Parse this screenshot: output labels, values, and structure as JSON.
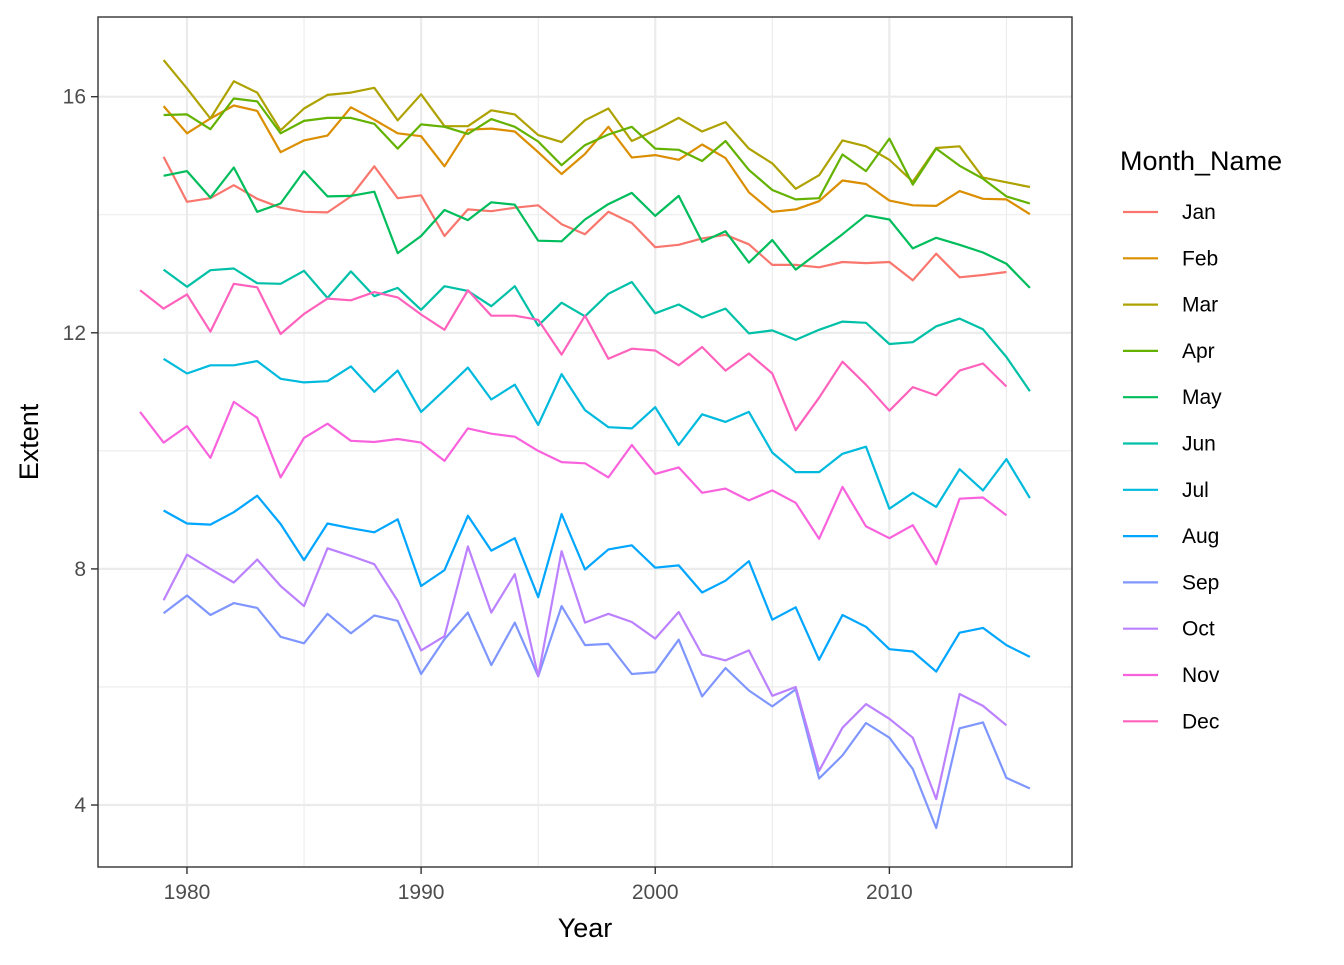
{
  "chart_data": {
    "type": "line",
    "xlabel": "Year",
    "ylabel": "Extent",
    "xlim": [
      1976.2,
      2017.8
    ],
    "ylim": [
      2.95,
      17.35
    ],
    "x_ticks": [
      1980,
      1990,
      2000,
      2010
    ],
    "y_ticks": [
      4,
      8,
      12,
      16
    ],
    "grid": true,
    "legend_title": "Month_Name",
    "legend_position": "right",
    "series": [
      {
        "name": "Jan",
        "color": "#F8766D",
        "x": [
          1979,
          1980,
          1981,
          1982,
          1983,
          1984,
          1985,
          1986,
          1987,
          1988,
          1989,
          1990,
          1991,
          1992,
          1993,
          1994,
          1995,
          1996,
          1997,
          1998,
          1999,
          2000,
          2001,
          2002,
          2003,
          2004,
          2005,
          2006,
          2007,
          2008,
          2009,
          2010,
          2011,
          2012,
          2013,
          2014,
          2015
        ],
        "y": [
          14.98,
          14.22,
          14.28,
          14.5,
          14.27,
          14.12,
          14.05,
          14.04,
          14.31,
          14.82,
          14.28,
          14.33,
          13.64,
          14.09,
          14.06,
          14.12,
          14.16,
          13.84,
          13.67,
          14.05,
          13.86,
          13.45,
          13.49,
          13.6,
          13.66,
          13.5,
          13.15,
          13.15,
          13.11,
          13.2,
          13.18,
          13.2,
          12.89,
          13.34,
          12.94,
          12.98,
          13.03
        ]
      },
      {
        "name": "Feb",
        "color": "#DB8E00",
        "x": [
          1979,
          1980,
          1981,
          1982,
          1983,
          1984,
          1985,
          1986,
          1987,
          1988,
          1989,
          1990,
          1991,
          1992,
          1993,
          1994,
          1995,
          1996,
          1997,
          1998,
          1999,
          2000,
          2001,
          2002,
          2003,
          2004,
          2005,
          2006,
          2007,
          2008,
          2009,
          2010,
          2011,
          2012,
          2013,
          2014,
          2015,
          2016
        ],
        "y": [
          15.84,
          15.38,
          15.63,
          15.85,
          15.76,
          15.06,
          15.26,
          15.34,
          15.82,
          15.61,
          15.38,
          15.33,
          14.82,
          15.44,
          15.46,
          15.41,
          15.06,
          14.69,
          15.03,
          15.49,
          14.97,
          15.01,
          14.93,
          15.19,
          14.96,
          14.38,
          14.05,
          14.09,
          14.23,
          14.58,
          14.52,
          14.24,
          14.16,
          14.15,
          14.4,
          14.27,
          14.26,
          14.01
        ]
      },
      {
        "name": "Mar",
        "color": "#AEA200",
        "x": [
          1979,
          1980,
          1981,
          1982,
          1983,
          1984,
          1985,
          1986,
          1987,
          1988,
          1989,
          1990,
          1991,
          1992,
          1993,
          1994,
          1995,
          1996,
          1997,
          1998,
          1999,
          2000,
          2001,
          2002,
          2003,
          2004,
          2005,
          2006,
          2007,
          2008,
          2009,
          2010,
          2011,
          2012,
          2013,
          2014,
          2015,
          2016
        ],
        "y": [
          16.62,
          16.14,
          15.63,
          16.26,
          16.07,
          15.43,
          15.8,
          16.03,
          16.07,
          16.15,
          15.6,
          16.04,
          15.5,
          15.5,
          15.77,
          15.7,
          15.35,
          15.23,
          15.6,
          15.8,
          15.25,
          15.43,
          15.64,
          15.41,
          15.57,
          15.12,
          14.87,
          14.44,
          14.67,
          15.26,
          15.16,
          14.93,
          14.56,
          15.13,
          15.16,
          14.63,
          14.55,
          14.47
        ]
      },
      {
        "name": "Apr",
        "color": "#64B200",
        "x": [
          1979,
          1980,
          1981,
          1982,
          1983,
          1984,
          1985,
          1986,
          1987,
          1988,
          1989,
          1990,
          1991,
          1992,
          1993,
          1994,
          1995,
          1996,
          1997,
          1998,
          1999,
          2000,
          2001,
          2002,
          2003,
          2004,
          2005,
          2006,
          2007,
          2008,
          2009,
          2010,
          2011,
          2012,
          2013,
          2014,
          2015,
          2016
        ],
        "y": [
          15.69,
          15.7,
          15.45,
          15.97,
          15.92,
          15.38,
          15.59,
          15.64,
          15.64,
          15.54,
          15.12,
          15.53,
          15.49,
          15.37,
          15.62,
          15.49,
          15.24,
          14.84,
          15.18,
          15.36,
          15.49,
          15.12,
          15.1,
          14.91,
          15.25,
          14.76,
          14.42,
          14.26,
          14.28,
          15.02,
          14.74,
          15.29,
          14.51,
          15.12,
          14.83,
          14.61,
          14.31,
          14.19
        ]
      },
      {
        "name": "May",
        "color": "#00BD5C",
        "x": [
          1979,
          1980,
          1981,
          1982,
          1983,
          1984,
          1985,
          1986,
          1987,
          1988,
          1989,
          1990,
          1991,
          1992,
          1993,
          1994,
          1995,
          1996,
          1997,
          1998,
          1999,
          2000,
          2001,
          2002,
          2003,
          2004,
          2005,
          2006,
          2007,
          2008,
          2009,
          2010,
          2011,
          2012,
          2013,
          2014,
          2015,
          2016
        ],
        "y": [
          14.66,
          14.74,
          14.29,
          14.8,
          14.05,
          14.19,
          14.74,
          14.31,
          14.32,
          14.39,
          13.35,
          13.64,
          14.08,
          13.91,
          14.21,
          14.17,
          13.56,
          13.55,
          13.92,
          14.18,
          14.37,
          13.98,
          14.32,
          13.54,
          13.72,
          13.19,
          13.57,
          13.07,
          13.37,
          13.67,
          13.99,
          13.92,
          13.43,
          13.61,
          13.49,
          13.36,
          13.17,
          12.76
        ]
      },
      {
        "name": "Jun",
        "color": "#00C1A7",
        "x": [
          1979,
          1980,
          1981,
          1982,
          1983,
          1984,
          1985,
          1986,
          1987,
          1988,
          1989,
          1990,
          1991,
          1992,
          1993,
          1994,
          1995,
          1996,
          1997,
          1998,
          1999,
          2000,
          2001,
          2002,
          2003,
          2004,
          2005,
          2006,
          2007,
          2008,
          2009,
          2010,
          2011,
          2012,
          2013,
          2014,
          2015,
          2016
        ],
        "y": [
          13.07,
          12.78,
          13.06,
          13.09,
          12.84,
          12.83,
          13.05,
          12.59,
          13.04,
          12.62,
          12.76,
          12.39,
          12.79,
          12.71,
          12.45,
          12.79,
          12.12,
          12.51,
          12.28,
          12.66,
          12.86,
          12.33,
          12.48,
          12.26,
          12.41,
          11.99,
          12.04,
          11.88,
          12.05,
          12.19,
          12.17,
          11.81,
          11.84,
          12.11,
          12.24,
          12.06,
          11.59,
          11.01
        ]
      },
      {
        "name": "Jul",
        "color": "#00BADE",
        "x": [
          1979,
          1980,
          1981,
          1982,
          1983,
          1984,
          1985,
          1986,
          1987,
          1988,
          1989,
          1990,
          1991,
          1992,
          1993,
          1994,
          1995,
          1996,
          1997,
          1998,
          1999,
          2000,
          2001,
          2002,
          2003,
          2004,
          2005,
          2006,
          2007,
          2008,
          2009,
          2010,
          2011,
          2012,
          2013,
          2014,
          2015,
          2016
        ],
        "y": [
          11.56,
          11.31,
          11.45,
          11.45,
          11.52,
          11.22,
          11.16,
          11.18,
          11.43,
          11.0,
          11.36,
          10.66,
          11.03,
          11.41,
          10.87,
          11.12,
          10.44,
          11.3,
          10.69,
          10.4,
          10.38,
          10.74,
          10.1,
          10.62,
          10.49,
          10.66,
          9.97,
          9.64,
          9.64,
          9.95,
          10.07,
          9.02,
          9.29,
          9.05,
          9.69,
          9.33,
          9.86,
          9.2
        ]
      },
      {
        "name": "Aug",
        "color": "#00A6FF",
        "x": [
          1979,
          1980,
          1981,
          1982,
          1983,
          1984,
          1985,
          1986,
          1987,
          1988,
          1989,
          1990,
          1991,
          1992,
          1993,
          1994,
          1995,
          1996,
          1997,
          1998,
          1999,
          2000,
          2001,
          2002,
          2003,
          2004,
          2005,
          2006,
          2007,
          2008,
          2009,
          2010,
          2011,
          2012,
          2013,
          2014,
          2015,
          2016
        ],
        "y": [
          8.99,
          8.77,
          8.75,
          8.96,
          9.24,
          8.76,
          8.15,
          8.77,
          8.69,
          8.62,
          8.84,
          7.71,
          7.98,
          8.9,
          8.31,
          8.52,
          7.52,
          8.93,
          7.99,
          8.33,
          8.4,
          8.02,
          8.06,
          7.6,
          7.8,
          8.13,
          7.14,
          7.35,
          6.46,
          7.22,
          7.02,
          6.64,
          6.6,
          6.26,
          6.92,
          7.0,
          6.71,
          6.51
        ]
      },
      {
        "name": "Sep",
        "color": "#7F96FF",
        "x": [
          1979,
          1980,
          1981,
          1982,
          1983,
          1984,
          1985,
          1986,
          1987,
          1988,
          1989,
          1990,
          1991,
          1992,
          1993,
          1994,
          1995,
          1996,
          1997,
          1998,
          1999,
          2000,
          2001,
          2002,
          2003,
          2004,
          2005,
          2006,
          2007,
          2008,
          2009,
          2010,
          2011,
          2012,
          2013,
          2014,
          2015,
          2016
        ],
        "y": [
          7.25,
          7.55,
          7.22,
          7.42,
          7.34,
          6.85,
          6.74,
          7.24,
          6.91,
          7.21,
          7.12,
          6.22,
          6.81,
          7.26,
          6.37,
          7.09,
          6.18,
          7.37,
          6.71,
          6.73,
          6.22,
          6.25,
          6.8,
          5.84,
          6.32,
          5.94,
          5.67,
          5.96,
          4.45,
          4.84,
          5.39,
          5.14,
          4.61,
          3.61,
          5.3,
          5.4,
          4.46,
          4.28
        ]
      },
      {
        "name": "Oct",
        "color": "#BC81FF",
        "x": [
          1979,
          1980,
          1981,
          1982,
          1983,
          1984,
          1985,
          1986,
          1987,
          1988,
          1989,
          1990,
          1991,
          1992,
          1993,
          1994,
          1995,
          1996,
          1997,
          1998,
          1999,
          2000,
          2001,
          2002,
          2003,
          2004,
          2005,
          2006,
          2007,
          2008,
          2009,
          2010,
          2011,
          2012,
          2013,
          2014,
          2015
        ],
        "y": [
          7.47,
          8.24,
          8.0,
          7.77,
          8.16,
          7.71,
          7.37,
          8.35,
          8.22,
          8.08,
          7.46,
          6.62,
          6.86,
          8.38,
          7.26,
          7.91,
          6.18,
          8.3,
          7.09,
          7.24,
          7.1,
          6.82,
          7.27,
          6.55,
          6.45,
          6.62,
          5.85,
          6.0,
          4.58,
          5.31,
          5.71,
          5.46,
          5.14,
          4.1,
          5.88,
          5.68,
          5.35
        ]
      },
      {
        "name": "Nov",
        "color": "#F962DD",
        "x": [
          1978,
          1979,
          1980,
          1981,
          1982,
          1983,
          1984,
          1985,
          1986,
          1987,
          1988,
          1989,
          1990,
          1991,
          1992,
          1993,
          1994,
          1995,
          1996,
          1997,
          1998,
          1999,
          2000,
          2001,
          2002,
          2003,
          2004,
          2005,
          2006,
          2007,
          2008,
          2009,
          2010,
          2011,
          2012,
          2013,
          2014,
          2015
        ],
        "y": [
          10.66,
          10.14,
          10.42,
          9.88,
          10.83,
          10.56,
          9.55,
          10.22,
          10.46,
          10.17,
          10.15,
          10.2,
          10.14,
          9.83,
          10.38,
          10.29,
          10.24,
          10.0,
          9.81,
          9.79,
          9.55,
          10.1,
          9.61,
          9.72,
          9.29,
          9.36,
          9.16,
          9.33,
          9.12,
          8.51,
          9.39,
          8.72,
          8.52,
          8.74,
          8.08,
          9.19,
          9.21,
          8.91
        ]
      },
      {
        "name": "Dec",
        "color": "#FF62BC",
        "x": [
          1978,
          1979,
          1980,
          1981,
          1982,
          1983,
          1984,
          1985,
          1986,
          1987,
          1988,
          1989,
          1990,
          1991,
          1992,
          1993,
          1994,
          1995,
          1996,
          1997,
          1998,
          1999,
          2000,
          2001,
          2002,
          2003,
          2004,
          2005,
          2006,
          2007,
          2008,
          2009,
          2010,
          2011,
          2012,
          2013,
          2014,
          2015
        ],
        "y": [
          12.72,
          12.41,
          12.65,
          12.02,
          12.83,
          12.77,
          11.98,
          12.32,
          12.58,
          12.55,
          12.69,
          12.6,
          12.31,
          12.05,
          12.72,
          12.29,
          12.29,
          12.22,
          11.63,
          12.29,
          11.56,
          11.73,
          11.7,
          11.45,
          11.76,
          11.36,
          11.65,
          11.31,
          10.35,
          10.9,
          11.51,
          11.12,
          10.68,
          11.08,
          10.94,
          11.36,
          11.48,
          11.09
        ]
      }
    ]
  }
}
